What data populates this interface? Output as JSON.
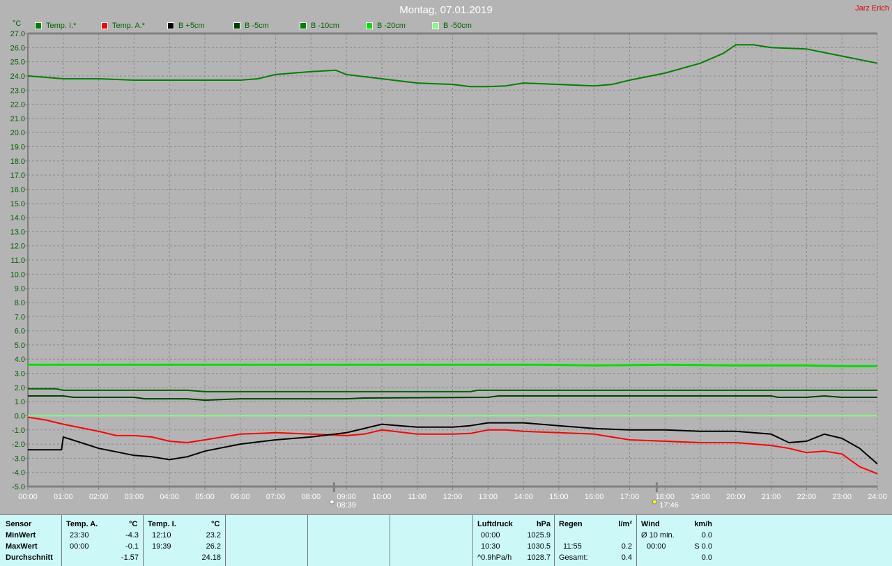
{
  "header": {
    "title": "Montag, 07.01.2019",
    "author": "Jarz Erich",
    "unit": "°C"
  },
  "legend": [
    {
      "label": "Temp. I.*",
      "color": "#008000"
    },
    {
      "label": "Temp. A.*",
      "color": "#ff0000"
    },
    {
      "label": "B +5cm",
      "color": "#000000"
    },
    {
      "label": "B -5cm",
      "color": "#004000"
    },
    {
      "label": "B -10cm",
      "color": "#008000"
    },
    {
      "label": "B -20cm",
      "color": "#00e000"
    },
    {
      "label": "B -50cm",
      "color": "#80ff80"
    }
  ],
  "sun": {
    "sunrise": "08:39",
    "sunset": "17:46"
  },
  "chart_data": {
    "type": "line",
    "title": "Montag, 07.01.2019",
    "ylabel": "°C",
    "ylim": [
      -5,
      27
    ],
    "xlim_hours": [
      0,
      24
    ],
    "grid": true,
    "legend_position": "top",
    "x_ticks": [
      "00:00",
      "01:00",
      "02:00",
      "03:00",
      "04:00",
      "05:00",
      "06:00",
      "07:00",
      "08:00",
      "09:00",
      "10:00",
      "11:00",
      "12:00",
      "13:00",
      "14:00",
      "15:00",
      "16:00",
      "17:00",
      "18:00",
      "19:00",
      "20:00",
      "21:00",
      "22:00",
      "23:00",
      "24:00"
    ],
    "y_ticks": [
      "27.0",
      "26.0",
      "25.0",
      "24.0",
      "23.0",
      "22.0",
      "21.0",
      "20.0",
      "19.0",
      "18.0",
      "17.0",
      "16.0",
      "15.0",
      "14.0",
      "13.0",
      "12.0",
      "11.0",
      "10.0",
      "9.0",
      "8.0",
      "7.0",
      "6.0",
      "5.0",
      "4.0",
      "3.0",
      "2.0",
      "1.0",
      "0.0",
      "-1.0",
      "-2.0",
      "-3.0",
      "-4.0",
      "-5.0"
    ],
    "series": [
      {
        "name": "Temp. I.*",
        "color": "#008000",
        "points": [
          [
            0,
            24.0
          ],
          [
            1,
            23.8
          ],
          [
            2,
            23.8
          ],
          [
            3,
            23.7
          ],
          [
            4,
            23.7
          ],
          [
            5,
            23.7
          ],
          [
            6,
            23.7
          ],
          [
            6.5,
            23.8
          ],
          [
            7,
            24.1
          ],
          [
            8,
            24.3
          ],
          [
            8.7,
            24.4
          ],
          [
            9,
            24.1
          ],
          [
            10,
            23.8
          ],
          [
            11,
            23.5
          ],
          [
            12,
            23.4
          ],
          [
            12.5,
            23.25
          ],
          [
            13,
            23.25
          ],
          [
            13.5,
            23.3
          ],
          [
            14,
            23.5
          ],
          [
            15,
            23.4
          ],
          [
            16,
            23.3
          ],
          [
            16.5,
            23.4
          ],
          [
            17,
            23.7
          ],
          [
            18,
            24.2
          ],
          [
            19,
            24.9
          ],
          [
            19.65,
            25.6
          ],
          [
            20,
            26.2
          ],
          [
            20.5,
            26.2
          ],
          [
            21,
            26.0
          ],
          [
            22,
            25.9
          ],
          [
            23,
            25.4
          ],
          [
            24,
            24.9
          ]
        ]
      },
      {
        "name": "B -20cm",
        "color": "#00e000",
        "points": [
          [
            0,
            3.6
          ],
          [
            14.5,
            3.6
          ],
          [
            16,
            3.55
          ],
          [
            18,
            3.6
          ],
          [
            20,
            3.55
          ],
          [
            22,
            3.55
          ],
          [
            23,
            3.5
          ],
          [
            24,
            3.5
          ]
        ]
      },
      {
        "name": "B -10cm",
        "color": "#006000",
        "points": [
          [
            0,
            1.9
          ],
          [
            0.8,
            1.9
          ],
          [
            1,
            1.8
          ],
          [
            4.5,
            1.8
          ],
          [
            5,
            1.7
          ],
          [
            12.5,
            1.7
          ],
          [
            12.7,
            1.8
          ],
          [
            24,
            1.8
          ]
        ]
      },
      {
        "name": "B -5cm",
        "color": "#004000",
        "points": [
          [
            0,
            1.4
          ],
          [
            1,
            1.4
          ],
          [
            1.3,
            1.3
          ],
          [
            3,
            1.3
          ],
          [
            3.3,
            1.2
          ],
          [
            4.5,
            1.2
          ],
          [
            5,
            1.1
          ],
          [
            5.5,
            1.15
          ],
          [
            6,
            1.2
          ],
          [
            9,
            1.2
          ],
          [
            9.5,
            1.25
          ],
          [
            13,
            1.3
          ],
          [
            13.3,
            1.4
          ],
          [
            21,
            1.4
          ],
          [
            21.2,
            1.3
          ],
          [
            22,
            1.3
          ],
          [
            22.5,
            1.4
          ],
          [
            23,
            1.3
          ],
          [
            24,
            1.3
          ]
        ]
      },
      {
        "name": "B -50cm",
        "color": "#80ff80",
        "points": [
          [
            0,
            0.0
          ],
          [
            24,
            0.0
          ]
        ]
      },
      {
        "name": "Temp. A.*",
        "color": "#ff0000",
        "points": [
          [
            0,
            -0.1
          ],
          [
            0.5,
            -0.3
          ],
          [
            1,
            -0.6
          ],
          [
            2,
            -1.1
          ],
          [
            2.5,
            -1.4
          ],
          [
            3,
            -1.4
          ],
          [
            3.5,
            -1.5
          ],
          [
            4,
            -1.8
          ],
          [
            4.5,
            -1.9
          ],
          [
            5,
            -1.7
          ],
          [
            6,
            -1.3
          ],
          [
            7,
            -1.2
          ],
          [
            8,
            -1.3
          ],
          [
            9,
            -1.4
          ],
          [
            9.5,
            -1.3
          ],
          [
            10,
            -1.0
          ],
          [
            11,
            -1.3
          ],
          [
            12,
            -1.3
          ],
          [
            12.5,
            -1.25
          ],
          [
            13,
            -1.0
          ],
          [
            13.5,
            -1.0
          ],
          [
            14,
            -1.1
          ],
          [
            15,
            -1.2
          ],
          [
            16,
            -1.3
          ],
          [
            17,
            -1.7
          ],
          [
            18,
            -1.8
          ],
          [
            19,
            -1.9
          ],
          [
            20,
            -1.9
          ],
          [
            21,
            -2.1
          ],
          [
            21.5,
            -2.3
          ],
          [
            22,
            -2.6
          ],
          [
            22.5,
            -2.5
          ],
          [
            23,
            -2.7
          ],
          [
            23.5,
            -3.6
          ],
          [
            24,
            -4.1
          ]
        ]
      },
      {
        "name": "B +5cm",
        "color": "#000000",
        "points": [
          [
            0,
            -2.4
          ],
          [
            0.95,
            -2.4
          ],
          [
            1,
            -1.5
          ],
          [
            1.5,
            -1.9
          ],
          [
            2,
            -2.3
          ],
          [
            3,
            -2.8
          ],
          [
            3.5,
            -2.9
          ],
          [
            4,
            -3.1
          ],
          [
            4.5,
            -2.9
          ],
          [
            5,
            -2.5
          ],
          [
            6,
            -2.0
          ],
          [
            7,
            -1.7
          ],
          [
            8,
            -1.5
          ],
          [
            9,
            -1.2
          ],
          [
            9.5,
            -0.9
          ],
          [
            10,
            -0.6
          ],
          [
            10.5,
            -0.7
          ],
          [
            11,
            -0.8
          ],
          [
            12,
            -0.8
          ],
          [
            12.5,
            -0.7
          ],
          [
            13,
            -0.5
          ],
          [
            14,
            -0.5
          ],
          [
            15,
            -0.7
          ],
          [
            16,
            -0.9
          ],
          [
            17,
            -1.0
          ],
          [
            18,
            -1.0
          ],
          [
            19,
            -1.1
          ],
          [
            20,
            -1.1
          ],
          [
            21,
            -1.3
          ],
          [
            21.5,
            -1.9
          ],
          [
            22,
            -1.8
          ],
          [
            22.5,
            -1.3
          ],
          [
            23,
            -1.6
          ],
          [
            23.5,
            -2.3
          ],
          [
            24,
            -3.4
          ]
        ]
      }
    ]
  },
  "stats": {
    "labels": {
      "sensor": "Sensor",
      "min": "MinWert",
      "max": "MaxWert",
      "avg": "Durchschnitt"
    },
    "temp_a": {
      "title": "Temp. A.",
      "unit": "°C",
      "min_time": "23:30",
      "min": "-4.3",
      "max_time": "00:00",
      "max": "-0.1",
      "avg": "-1.57"
    },
    "temp_i": {
      "title": "Temp. I.",
      "unit": "°C",
      "min_time": "12:10",
      "min": "23.2",
      "max_time": "19:39",
      "max": "26.2",
      "avg": "24.18"
    },
    "pressure": {
      "title": "Luftdruck",
      "unit": "hPa",
      "r1_label": "00:00",
      "r1": "1025.9",
      "r2_label": "10:30",
      "r2": "1030.5",
      "r3_label": "^0.9hPa/h",
      "r3": "1028.7"
    },
    "rain": {
      "title": "Regen",
      "unit": "l/m²",
      "r2_label": "11:55",
      "r2": "0.2",
      "r3_label": "Gesamt:",
      "r3": "0.4"
    },
    "wind": {
      "title": "Wind",
      "unit": "km/h",
      "r1_label": "Ø 10 min.",
      "r1": "0.0",
      "r2_label": "00:00",
      "r2": "S 0.0",
      "r3": "0.0"
    }
  }
}
